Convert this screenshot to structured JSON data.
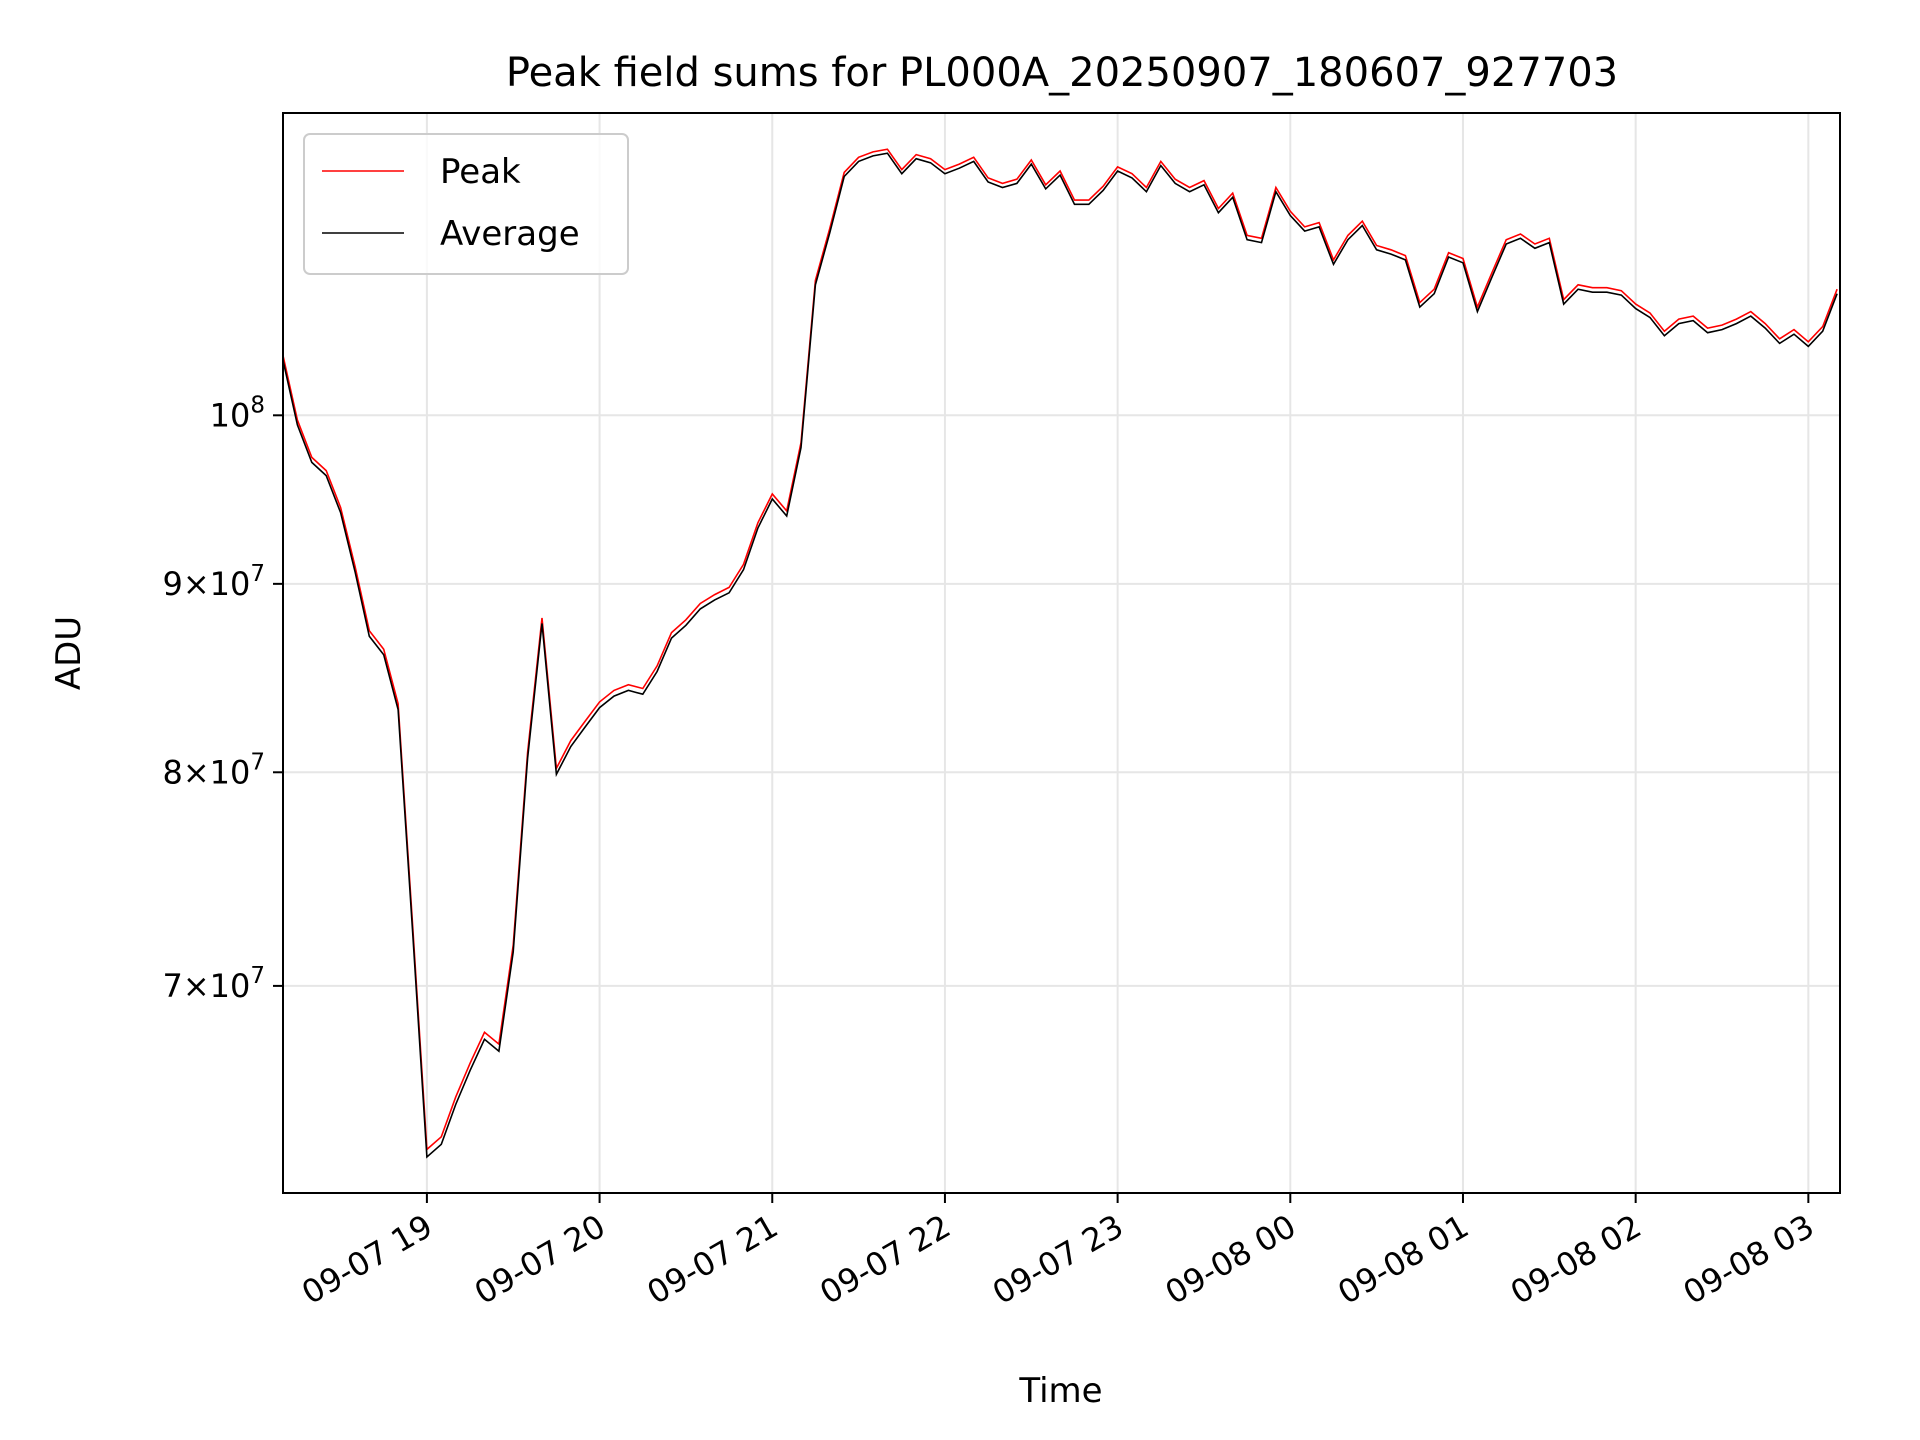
{
  "chart_data": {
    "type": "line",
    "title": "Peak field sums for PL000A_20250907_180607_927703",
    "xlabel": "Time",
    "ylabel": "ADU",
    "x_range": [
      "2025-09-07 18:10",
      "2025-09-08 03:11"
    ],
    "y_range": [
      61500000,
      120800000
    ],
    "y_scale": "log",
    "grid": true,
    "legend_position": "top-left",
    "x_ticks": [
      {
        "value": "2025-09-07 19:00",
        "label": "09-07 19"
      },
      {
        "value": "2025-09-07 20:00",
        "label": "09-07 20"
      },
      {
        "value": "2025-09-07 21:00",
        "label": "09-07 21"
      },
      {
        "value": "2025-09-07 22:00",
        "label": "09-07 22"
      },
      {
        "value": "2025-09-07 23:00",
        "label": "09-07 23"
      },
      {
        "value": "2025-09-08 00:00",
        "label": "09-08 00"
      },
      {
        "value": "2025-09-08 01:00",
        "label": "09-08 01"
      },
      {
        "value": "2025-09-08 02:00",
        "label": "09-08 02"
      },
      {
        "value": "2025-09-08 03:00",
        "label": "09-08 03"
      }
    ],
    "y_ticks": [
      {
        "value": 70000000,
        "mantissa": "7",
        "exp": "7"
      },
      {
        "value": 80000000,
        "mantissa": "8",
        "exp": "7"
      },
      {
        "value": 90000000,
        "mantissa": "9",
        "exp": "7"
      },
      {
        "value": 100000000,
        "mantissa": "",
        "exp": "8"
      }
    ],
    "x_unit": "time",
    "x": [
      "2025-09-07 18:10",
      "2025-09-07 18:15",
      "2025-09-07 18:20",
      "2025-09-07 18:25",
      "2025-09-07 18:30",
      "2025-09-07 18:35",
      "2025-09-07 18:40",
      "2025-09-07 18:45",
      "2025-09-07 18:50",
      "2025-09-07 18:55",
      "2025-09-07 19:00",
      "2025-09-07 19:05",
      "2025-09-07 19:10",
      "2025-09-07 19:15",
      "2025-09-07 19:20",
      "2025-09-07 19:25",
      "2025-09-07 19:30",
      "2025-09-07 19:35",
      "2025-09-07 19:40",
      "2025-09-07 19:45",
      "2025-09-07 19:50",
      "2025-09-07 19:55",
      "2025-09-07 20:00",
      "2025-09-07 20:05",
      "2025-09-07 20:10",
      "2025-09-07 20:15",
      "2025-09-07 20:20",
      "2025-09-07 20:25",
      "2025-09-07 20:30",
      "2025-09-07 20:35",
      "2025-09-07 20:40",
      "2025-09-07 20:45",
      "2025-09-07 20:50",
      "2025-09-07 20:55",
      "2025-09-07 21:00",
      "2025-09-07 21:05",
      "2025-09-07 21:10",
      "2025-09-07 21:15",
      "2025-09-07 21:20",
      "2025-09-07 21:25",
      "2025-09-07 21:30",
      "2025-09-07 21:35",
      "2025-09-07 21:40",
      "2025-09-07 21:45",
      "2025-09-07 21:50",
      "2025-09-07 21:55",
      "2025-09-07 22:00",
      "2025-09-07 22:05",
      "2025-09-07 22:10",
      "2025-09-07 22:15",
      "2025-09-07 22:20",
      "2025-09-07 22:25",
      "2025-09-07 22:30",
      "2025-09-07 22:35",
      "2025-09-07 22:40",
      "2025-09-07 22:45",
      "2025-09-07 22:50",
      "2025-09-07 22:55",
      "2025-09-07 23:00",
      "2025-09-07 23:05",
      "2025-09-07 23:10",
      "2025-09-07 23:15",
      "2025-09-07 23:20",
      "2025-09-07 23:25",
      "2025-09-07 23:30",
      "2025-09-07 23:35",
      "2025-09-07 23:40",
      "2025-09-07 23:45",
      "2025-09-07 23:50",
      "2025-09-07 23:55",
      "2025-09-08 00:00",
      "2025-09-08 00:05",
      "2025-09-08 00:10",
      "2025-09-08 00:15",
      "2025-09-08 00:20",
      "2025-09-08 00:25",
      "2025-09-08 00:30",
      "2025-09-08 00:35",
      "2025-09-08 00:40",
      "2025-09-08 00:45",
      "2025-09-08 00:50",
      "2025-09-08 00:55",
      "2025-09-08 01:00",
      "2025-09-08 01:05",
      "2025-09-08 01:10",
      "2025-09-08 01:15",
      "2025-09-08 01:20",
      "2025-09-08 01:25",
      "2025-09-08 01:30",
      "2025-09-08 01:35",
      "2025-09-08 01:40",
      "2025-09-08 01:45",
      "2025-09-08 01:50",
      "2025-09-08 01:55",
      "2025-09-08 02:00",
      "2025-09-08 02:05",
      "2025-09-08 02:10",
      "2025-09-08 02:15",
      "2025-09-08 02:20",
      "2025-09-08 02:25",
      "2025-09-08 02:30",
      "2025-09-08 02:35",
      "2025-09-08 02:40",
      "2025-09-08 02:45",
      "2025-09-08 02:50",
      "2025-09-08 02:55",
      "2025-09-08 03:00",
      "2025-09-08 03:05",
      "2025-09-08 03:10"
    ],
    "series": [
      {
        "name": "Peak",
        "color": "#ff0000",
        "values": [
          103800000,
          99700000,
          97400000,
          96600000,
          94400000,
          91000000,
          87400000,
          86400000,
          83500000,
          72800000,
          63200000,
          63700000,
          65300000,
          66700000,
          68000000,
          67500000,
          71800000,
          81000000,
          88100000,
          80200000,
          81600000,
          82600000,
          83600000,
          84200000,
          84500000,
          84300000,
          85500000,
          87300000,
          88000000,
          88900000,
          89400000,
          89800000,
          91100000,
          93500000,
          95200000,
          94200000,
          98300000,
          108800000,
          112400000,
          116400000,
          117500000,
          117900000,
          118100000,
          116600000,
          117700000,
          117400000,
          116600000,
          117000000,
          117500000,
          116000000,
          115600000,
          115900000,
          117300000,
          115500000,
          116500000,
          114400000,
          114400000,
          115400000,
          116800000,
          116300000,
          115300000,
          117200000,
          115900000,
          115300000,
          115800000,
          113800000,
          114900000,
          111900000,
          111700000,
          115300000,
          113600000,
          112500000,
          112800000,
          110200000,
          111900000,
          112900000,
          111200000,
          110900000,
          110500000,
          107300000,
          108200000,
          110700000,
          110300000,
          107000000,
          109300000,
          111600000,
          112000000,
          111300000,
          111700000,
          107500000,
          108500000,
          108300000,
          108300000,
          108100000,
          107200000,
          106600000,
          105400000,
          106200000,
          106400000,
          105600000,
          105800000,
          106200000,
          106700000,
          105900000,
          104900000,
          105500000,
          104700000,
          105700000,
          108200000
        ]
      },
      {
        "name": "Average",
        "color": "#000000",
        "values": [
          103500000,
          99400000,
          97100000,
          96300000,
          94100000,
          90700000,
          87100000,
          86100000,
          83200000,
          72500000,
          62900000,
          63400000,
          65000000,
          66400000,
          67700000,
          67200000,
          71500000,
          80700000,
          87800000,
          79900000,
          81300000,
          82300000,
          83300000,
          83900000,
          84200000,
          84000000,
          85200000,
          87000000,
          87700000,
          88600000,
          89100000,
          89500000,
          90800000,
          93200000,
          94900000,
          93900000,
          98000000,
          108500000,
          112100000,
          116100000,
          117200000,
          117600000,
          117800000,
          116300000,
          117400000,
          117100000,
          116300000,
          116700000,
          117200000,
          115700000,
          115300000,
          115600000,
          117000000,
          115200000,
          116200000,
          114100000,
          114100000,
          115100000,
          116500000,
          116000000,
          115000000,
          116900000,
          115600000,
          115000000,
          115500000,
          113500000,
          114600000,
          111600000,
          111400000,
          115000000,
          113300000,
          112200000,
          112500000,
          109900000,
          111600000,
          112600000,
          110900000,
          110600000,
          110200000,
          107000000,
          107900000,
          110400000,
          110000000,
          106700000,
          109000000,
          111300000,
          111700000,
          111000000,
          111400000,
          107200000,
          108200000,
          108000000,
          108000000,
          107800000,
          106900000,
          106300000,
          105100000,
          105900000,
          106100000,
          105300000,
          105500000,
          105900000,
          106400000,
          105600000,
          104600000,
          105200000,
          104400000,
          105400000,
          107900000
        ]
      }
    ]
  }
}
